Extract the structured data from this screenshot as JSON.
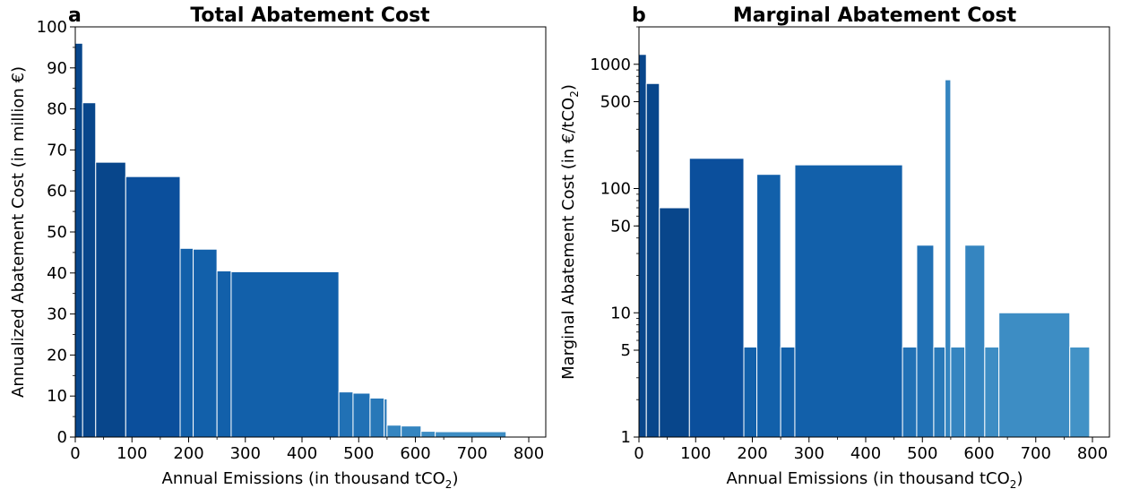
{
  "chart_data": [
    {
      "type": "bar",
      "panel_letter": "a",
      "title": "Total Abatement Cost",
      "xlabel": "Annual Emissions (in thousand tCO",
      "xlabel_sub": "2",
      "xlabel_end": ")",
      "ylabel": "Annualized Abatement Cost (in million €)",
      "xlim": [
        0,
        830
      ],
      "ylim": [
        0,
        100
      ],
      "xticks": [
        0,
        100,
        200,
        300,
        400,
        500,
        600,
        700,
        800
      ],
      "yticks": [
        0,
        10,
        20,
        30,
        40,
        50,
        60,
        70,
        80,
        90,
        100
      ],
      "grid": false,
      "bars": [
        {
          "x0": 0,
          "x1": 13,
          "value": 96,
          "color": "#08468b"
        },
        {
          "x0": 13,
          "x1": 36,
          "value": 81.5,
          "color": "#08468b"
        },
        {
          "x0": 36,
          "x1": 89,
          "value": 67,
          "color": "#08468b"
        },
        {
          "x0": 89,
          "x1": 185,
          "value": 63.5,
          "color": "#0b4f9c"
        },
        {
          "x0": 185,
          "x1": 208,
          "value": 46,
          "color": "#1260aa"
        },
        {
          "x0": 208,
          "x1": 250,
          "value": 45.8,
          "color": "#1260aa"
        },
        {
          "x0": 250,
          "x1": 275,
          "value": 40.5,
          "color": "#1260aa"
        },
        {
          "x0": 275,
          "x1": 465,
          "value": 40.3,
          "color": "#1260aa"
        },
        {
          "x0": 465,
          "x1": 490,
          "value": 11,
          "color": "#2171b5"
        },
        {
          "x0": 490,
          "x1": 520,
          "value": 10.7,
          "color": "#2171b5"
        },
        {
          "x0": 520,
          "x1": 545,
          "value": 9.5,
          "color": "#2878b8"
        },
        {
          "x0": 545,
          "x1": 550,
          "value": 9.3,
          "color": "#2878b8"
        },
        {
          "x0": 550,
          "x1": 575,
          "value": 2.9,
          "color": "#3585c0"
        },
        {
          "x0": 575,
          "x1": 610,
          "value": 2.7,
          "color": "#3585c0"
        },
        {
          "x0": 610,
          "x1": 635,
          "value": 1.4,
          "color": "#3d8dc4"
        },
        {
          "x0": 635,
          "x1": 760,
          "value": 1.3,
          "color": "#3d8dc4"
        }
      ]
    },
    {
      "type": "bar",
      "panel_letter": "b",
      "title": "Marginal Abatement Cost",
      "xlabel": "Annual Emissions (in thousand tCO",
      "xlabel_sub": "2",
      "xlabel_end": ")",
      "ylabel": "Marginal Abatement Cost (in €/tCO",
      "ylabel_sub": "2",
      "ylabel_end": ")",
      "yscale": "log",
      "xlim": [
        0,
        830
      ],
      "ylim": [
        1,
        2000
      ],
      "xticks": [
        0,
        100,
        200,
        300,
        400,
        500,
        600,
        700,
        800
      ],
      "yticks": [
        1,
        5,
        10,
        50,
        100,
        500,
        1000
      ],
      "grid": false,
      "bars": [
        {
          "x0": 0,
          "x1": 13,
          "value": 1200,
          "color": "#08468b"
        },
        {
          "x0": 13,
          "x1": 36,
          "value": 700,
          "color": "#08468b"
        },
        {
          "x0": 36,
          "x1": 89,
          "value": 70,
          "color": "#08468b"
        },
        {
          "x0": 89,
          "x1": 185,
          "value": 175,
          "color": "#0b4f9c"
        },
        {
          "x0": 185,
          "x1": 208,
          "value": 5.3,
          "color": "#1260aa"
        },
        {
          "x0": 208,
          "x1": 250,
          "value": 130,
          "color": "#1260aa"
        },
        {
          "x0": 250,
          "x1": 275,
          "value": 5.3,
          "color": "#1260aa"
        },
        {
          "x0": 275,
          "x1": 465,
          "value": 155,
          "color": "#1260aa"
        },
        {
          "x0": 465,
          "x1": 490,
          "value": 5.3,
          "color": "#2171b5"
        },
        {
          "x0": 490,
          "x1": 520,
          "value": 35,
          "color": "#2171b5"
        },
        {
          "x0": 520,
          "x1": 540,
          "value": 5.3,
          "color": "#2878b8"
        },
        {
          "x0": 540,
          "x1": 550,
          "value": 750,
          "color": "#3585c0"
        },
        {
          "x0": 550,
          "x1": 575,
          "value": 5.3,
          "color": "#3585c0"
        },
        {
          "x0": 575,
          "x1": 610,
          "value": 35,
          "color": "#3585c0"
        },
        {
          "x0": 610,
          "x1": 635,
          "value": 5.3,
          "color": "#3d8dc4"
        },
        {
          "x0": 635,
          "x1": 760,
          "value": 10,
          "color": "#3d8dc4"
        },
        {
          "x0": 760,
          "x1": 795,
          "value": 5.3,
          "color": "#4292c6"
        }
      ]
    }
  ]
}
